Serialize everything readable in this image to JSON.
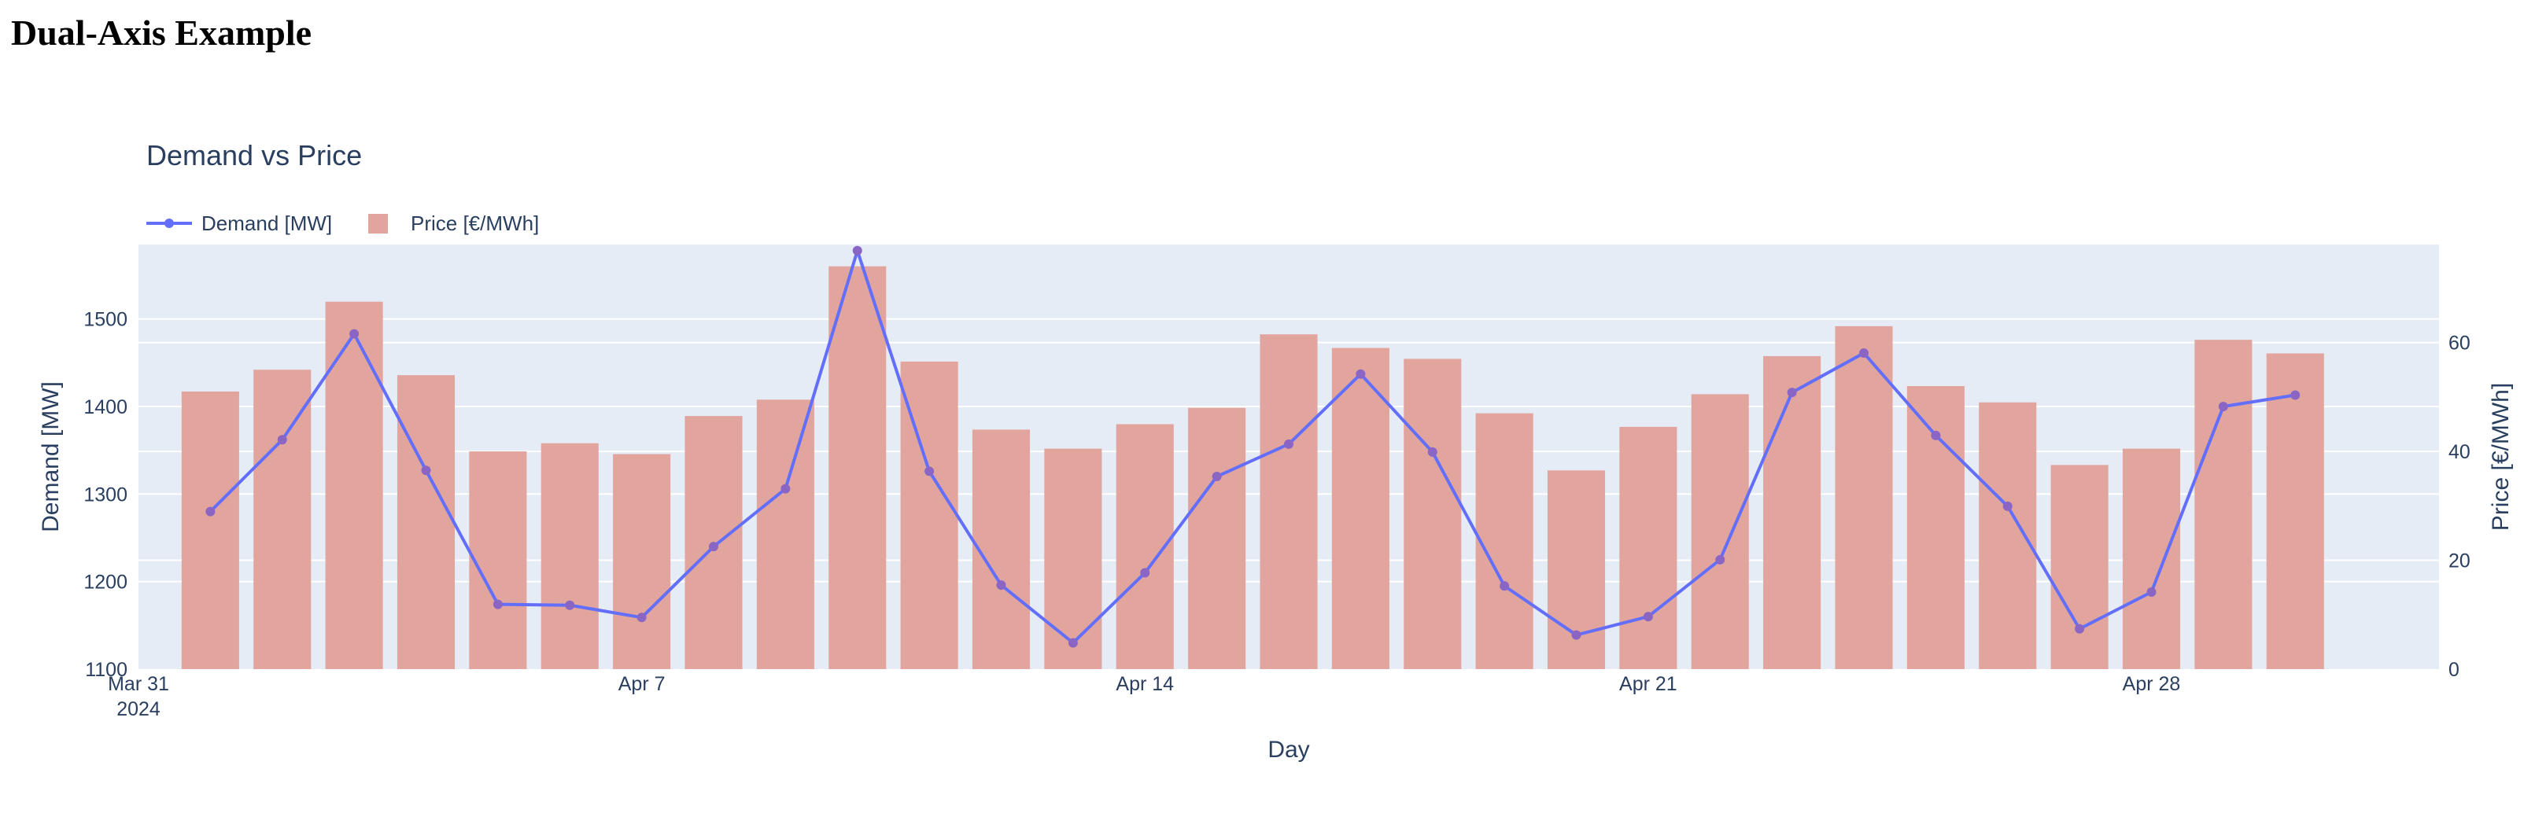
{
  "page": {
    "heading": "Dual-Axis Example"
  },
  "chart_data": {
    "type": "bar+line",
    "title": "Demand vs Price",
    "xlabel": "Day",
    "ylabel_left": "Demand [MW]",
    "ylabel_right": "Price [€/MWh]",
    "x_start_date": "2024-03-31",
    "x_range": [
      "2024-03-31",
      "2024-05-02"
    ],
    "x_ticks": [
      {
        "date": "2024-03-31",
        "label": "Mar 31",
        "sublabel": "2024"
      },
      {
        "date": "2024-04-07",
        "label": "Apr 7",
        "sublabel": ""
      },
      {
        "date": "2024-04-14",
        "label": "Apr 14",
        "sublabel": ""
      },
      {
        "date": "2024-04-21",
        "label": "Apr 21",
        "sublabel": ""
      },
      {
        "date": "2024-04-28",
        "label": "Apr 28",
        "sublabel": ""
      }
    ],
    "y_left_range": [
      1100,
      1585
    ],
    "y_left_ticks": [
      1100,
      1200,
      1300,
      1400,
      1500
    ],
    "y_right_range": [
      0,
      78
    ],
    "y_right_ticks": [
      0,
      20,
      40,
      60
    ],
    "dates": [
      "2024-04-01",
      "2024-04-02",
      "2024-04-03",
      "2024-04-04",
      "2024-04-05",
      "2024-04-06",
      "2024-04-07",
      "2024-04-08",
      "2024-04-09",
      "2024-04-10",
      "2024-04-11",
      "2024-04-12",
      "2024-04-13",
      "2024-04-14",
      "2024-04-15",
      "2024-04-16",
      "2024-04-17",
      "2024-04-18",
      "2024-04-19",
      "2024-04-20",
      "2024-04-21",
      "2024-04-22",
      "2024-04-23",
      "2024-04-24",
      "2024-04-25",
      "2024-04-26",
      "2024-04-27",
      "2024-04-28",
      "2024-04-29",
      "2024-04-30"
    ],
    "series": [
      {
        "name": "Demand [MW]",
        "type": "line",
        "axis": "left",
        "color": "#636efa",
        "values": [
          1280,
          1362,
          1483,
          1327,
          1174,
          1173,
          1159,
          1240,
          1306,
          1578,
          1326,
          1196,
          1130,
          1210,
          1320,
          1357,
          1437,
          1348,
          1195,
          1139,
          1160,
          1225,
          1416,
          1461,
          1367,
          1286,
          1146,
          1188,
          1400,
          1413
        ]
      },
      {
        "name": "Price [€/MWh]",
        "type": "bar",
        "axis": "right",
        "color": "#e2a59e",
        "values": [
          51,
          55,
          67.5,
          54,
          40,
          41.5,
          39.5,
          46.5,
          49.5,
          74,
          56.5,
          44,
          40.5,
          45,
          48,
          61.5,
          59,
          57,
          47,
          36.5,
          44.5,
          50.5,
          57.5,
          63,
          52,
          49,
          37.5,
          40.5,
          60.5,
          58
        ]
      }
    ]
  }
}
